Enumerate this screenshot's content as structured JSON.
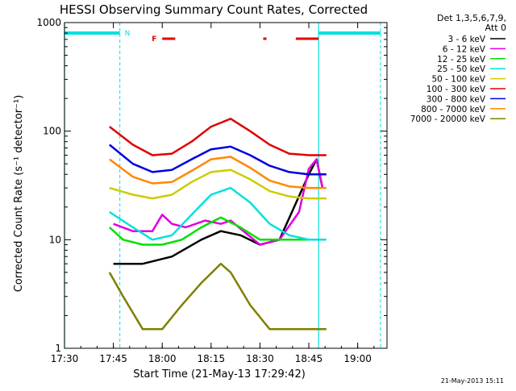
{
  "chart_data": {
    "type": "line",
    "title": "HESSI Observing Summary Count Rates, Corrected",
    "xlabel": "Start Time (21-May-13 17:29:42)",
    "ylabel": "Corrected Count Rate (s⁻¹ detector⁻¹)",
    "x_scale": "time",
    "xlim": [
      "17:30",
      "19:09"
    ],
    "x_ticks": [
      "17:30",
      "17:45",
      "18:00",
      "18:15",
      "18:30",
      "18:45",
      "19:00"
    ],
    "y_scale": "log",
    "ylim": [
      1,
      1000
    ],
    "y_ticks": [
      "1",
      "10",
      "100",
      "1000"
    ],
    "footer": "21-May-2013 15:11",
    "legend_header": [
      "Det 1,3,5,6,7,9,",
      "Att 0"
    ],
    "series": [
      {
        "name": "3 - 6 keV",
        "color": "#000000",
        "points": [
          [
            17.75,
            6
          ],
          [
            17.9,
            6
          ],
          [
            18.05,
            7
          ],
          [
            18.2,
            10
          ],
          [
            18.3,
            12
          ],
          [
            18.4,
            11
          ],
          [
            18.5,
            9
          ],
          [
            18.6,
            10
          ],
          [
            18.75,
            40
          ],
          [
            18.79,
            55
          ],
          [
            18.82,
            30
          ]
        ]
      },
      {
        "name": "6 - 12 keV",
        "color": "#e000e0",
        "points": [
          [
            17.75,
            14
          ],
          [
            17.85,
            12
          ],
          [
            17.95,
            12
          ],
          [
            18.0,
            17
          ],
          [
            18.05,
            14
          ],
          [
            18.12,
            13
          ],
          [
            18.22,
            15
          ],
          [
            18.3,
            14
          ],
          [
            18.35,
            15
          ],
          [
            18.5,
            9
          ],
          [
            18.6,
            10
          ],
          [
            18.7,
            18
          ],
          [
            18.75,
            45
          ],
          [
            18.79,
            55
          ],
          [
            18.82,
            30
          ]
        ]
      },
      {
        "name": "12 - 25 keV",
        "color": "#00e000",
        "points": [
          [
            17.73,
            13
          ],
          [
            17.8,
            10
          ],
          [
            17.9,
            9
          ],
          [
            18.0,
            9
          ],
          [
            18.1,
            10
          ],
          [
            18.2,
            13
          ],
          [
            18.3,
            16
          ],
          [
            18.4,
            13
          ],
          [
            18.5,
            10
          ],
          [
            18.6,
            10
          ],
          [
            18.7,
            10
          ],
          [
            18.8,
            10
          ]
        ]
      },
      {
        "name": "25 - 50 keV",
        "color": "#00e0e0",
        "points": [
          [
            17.73,
            18
          ],
          [
            17.85,
            13
          ],
          [
            17.95,
            10
          ],
          [
            18.05,
            11
          ],
          [
            18.15,
            17
          ],
          [
            18.25,
            26
          ],
          [
            18.35,
            30
          ],
          [
            18.45,
            22
          ],
          [
            18.55,
            14
          ],
          [
            18.65,
            11
          ],
          [
            18.75,
            10
          ],
          [
            18.84,
            10
          ]
        ]
      },
      {
        "name": "50 - 100 keV",
        "color": "#cccc00",
        "points": [
          [
            17.73,
            30
          ],
          [
            17.85,
            26
          ],
          [
            17.95,
            24
          ],
          [
            18.05,
            26
          ],
          [
            18.15,
            34
          ],
          [
            18.25,
            42
          ],
          [
            18.35,
            44
          ],
          [
            18.45,
            36
          ],
          [
            18.55,
            28
          ],
          [
            18.65,
            25
          ],
          [
            18.75,
            24
          ],
          [
            18.84,
            24
          ]
        ]
      },
      {
        "name": "100 - 300 keV",
        "color": "#e00000",
        "points": [
          [
            17.73,
            110
          ],
          [
            17.85,
            75
          ],
          [
            17.95,
            60
          ],
          [
            18.05,
            62
          ],
          [
            18.15,
            80
          ],
          [
            18.25,
            110
          ],
          [
            18.35,
            130
          ],
          [
            18.45,
            100
          ],
          [
            18.55,
            75
          ],
          [
            18.65,
            62
          ],
          [
            18.75,
            60
          ],
          [
            18.84,
            60
          ]
        ]
      },
      {
        "name": "300 - 800 keV",
        "color": "#0000e0",
        "points": [
          [
            17.73,
            75
          ],
          [
            17.85,
            50
          ],
          [
            17.95,
            42
          ],
          [
            18.05,
            44
          ],
          [
            18.15,
            55
          ],
          [
            18.25,
            68
          ],
          [
            18.35,
            72
          ],
          [
            18.45,
            60
          ],
          [
            18.55,
            48
          ],
          [
            18.65,
            42
          ],
          [
            18.75,
            40
          ],
          [
            18.84,
            40
          ]
        ]
      },
      {
        "name": "800 - 7000 keV",
        "color": "#ff8800",
        "points": [
          [
            17.73,
            55
          ],
          [
            17.85,
            38
          ],
          [
            17.95,
            33
          ],
          [
            18.05,
            34
          ],
          [
            18.15,
            43
          ],
          [
            18.25,
            55
          ],
          [
            18.35,
            58
          ],
          [
            18.45,
            46
          ],
          [
            18.55,
            35
          ],
          [
            18.65,
            31
          ],
          [
            18.75,
            30
          ],
          [
            18.84,
            30
          ]
        ]
      },
      {
        "name": "7000 - 20000 keV",
        "color": "#808000",
        "points": [
          [
            17.73,
            5
          ],
          [
            17.8,
            3
          ],
          [
            17.9,
            1.5
          ],
          [
            18.0,
            1.5
          ],
          [
            18.1,
            2.5
          ],
          [
            18.2,
            4
          ],
          [
            18.3,
            6
          ],
          [
            18.35,
            5
          ],
          [
            18.45,
            2.5
          ],
          [
            18.55,
            1.5
          ],
          [
            18.7,
            1.5
          ],
          [
            18.84,
            1.5
          ]
        ]
      }
    ],
    "attenuator_flag": {
      "label": "N",
      "color": "#00e0e0",
      "segments": [
        [
          "17:30",
          "17:47"
        ],
        [
          "18:48",
          "19:07"
        ]
      ]
    },
    "flare_flag": {
      "label": "F",
      "color": "#e00000",
      "segments": [
        [
          "18:00",
          "18:04"
        ],
        [
          "18:31",
          "18:32"
        ],
        [
          "18:41",
          "18:48"
        ]
      ]
    },
    "night_markers": {
      "color": "#00e0e0",
      "solid": [
        "17:30",
        "18:48"
      ],
      "dashed": [
        "17:47",
        "19:07"
      ]
    }
  }
}
